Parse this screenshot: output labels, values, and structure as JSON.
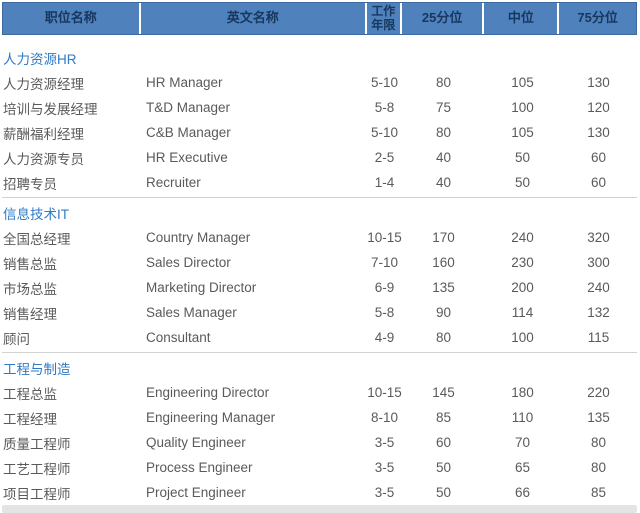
{
  "table": {
    "columns": [
      {
        "label": "职位名称"
      },
      {
        "label": "英文名称"
      },
      {
        "label": "工作年限"
      },
      {
        "label": "25分位"
      },
      {
        "label": "中位"
      },
      {
        "label": "75分位"
      }
    ],
    "sections": [
      {
        "title": "人力资源HR",
        "rows": [
          {
            "title_cn": "人力资源经理",
            "title_en": "HR Manager",
            "years": "5-10",
            "p25": "80",
            "median": "105",
            "p75": "130"
          },
          {
            "title_cn": "培训与发展经理",
            "title_en": "T&D Manager",
            "years": "5-8",
            "p25": "75",
            "median": "100",
            "p75": "120"
          },
          {
            "title_cn": "薪酬福利经理",
            "title_en": "C&B Manager",
            "years": "5-10",
            "p25": "80",
            "median": "105",
            "p75": "130"
          },
          {
            "title_cn": "人力资源专员",
            "title_en": "HR Executive",
            "years": "2-5",
            "p25": "40",
            "median": "50",
            "p75": "60"
          },
          {
            "title_cn": "招聘专员",
            "title_en": "Recruiter",
            "years": "1-4",
            "p25": "40",
            "median": "50",
            "p75": "60"
          }
        ]
      },
      {
        "title": "信息技术IT",
        "rows": [
          {
            "title_cn": "全国总经理",
            "title_en": "Country Manager",
            "years": "10-15",
            "p25": "170",
            "median": "240",
            "p75": "320"
          },
          {
            "title_cn": "销售总监",
            "title_en": "Sales Director",
            "years": "7-10",
            "p25": "160",
            "median": "230",
            "p75": "300"
          },
          {
            "title_cn": "市场总监",
            "title_en": "Marketing Director",
            "years": "6-9",
            "p25": "135",
            "median": "200",
            "p75": "240"
          },
          {
            "title_cn": "销售经理",
            "title_en": "Sales Manager",
            "years": "5-8",
            "p25": "90",
            "median": "114",
            "p75": "132"
          },
          {
            "title_cn": "顾问",
            "title_en": "Consultant",
            "years": "4-9",
            "p25": "80",
            "median": "100",
            "p75": "115"
          }
        ]
      },
      {
        "title": "工程与制造",
        "rows": [
          {
            "title_cn": "工程总监",
            "title_en": "Engineering Director",
            "years": "10-15",
            "p25": "145",
            "median": "180",
            "p75": "220"
          },
          {
            "title_cn": "工程经理",
            "title_en": "Engineering Manager",
            "years": "8-10",
            "p25": "85",
            "median": "110",
            "p75": "135"
          },
          {
            "title_cn": "质量工程师",
            "title_en": "Quality Engineer",
            "years": "3-5",
            "p25": "60",
            "median": "70",
            "p75": "80"
          },
          {
            "title_cn": "工艺工程师",
            "title_en": "Process Engineer",
            "years": "3-5",
            "p25": "50",
            "median": "65",
            "p75": "80"
          },
          {
            "title_cn": "项目工程师",
            "title_en": "Project Engineer",
            "years": "3-5",
            "p25": "50",
            "median": "66",
            "p75": "85"
          }
        ]
      }
    ]
  },
  "colors": {
    "header_bg": "#4f81bd",
    "header_text": "#17375e",
    "section_title": "#2e7ac6",
    "body_text": "#5a5a5a",
    "divider": "#d2d2d2",
    "bottom_bar": "#e4e4e4"
  }
}
